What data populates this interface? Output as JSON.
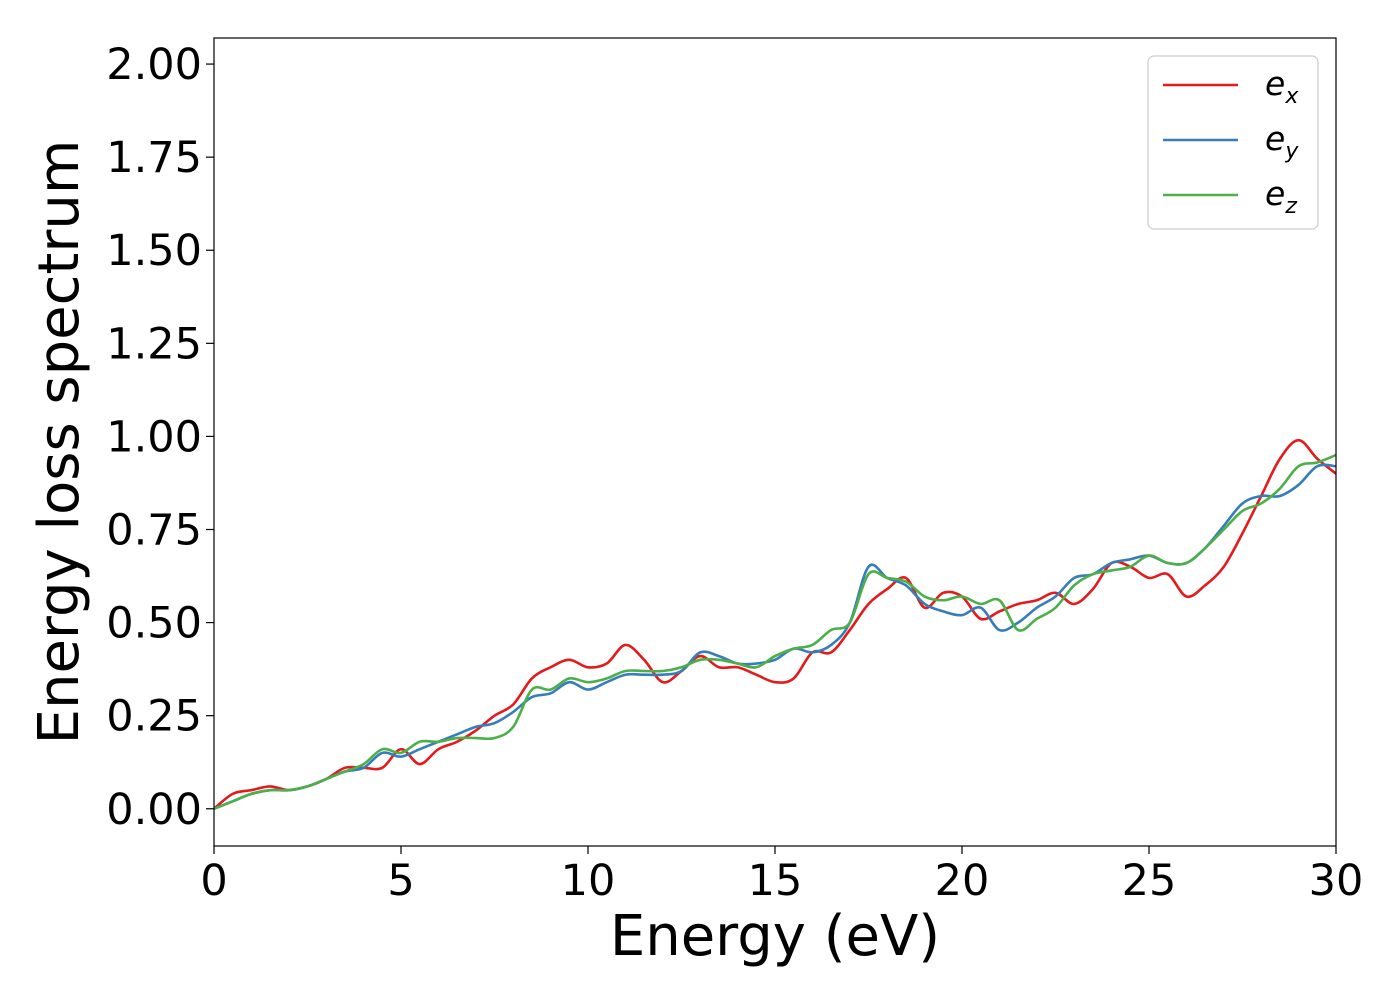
{
  "chart_data": {
    "type": "line",
    "title": "",
    "xlabel": "Energy (eV)",
    "ylabel": "Energy loss spectrum",
    "xlim": [
      0,
      30
    ],
    "ylim": [
      -0.1,
      2.07
    ],
    "xticks": [
      0,
      5,
      10,
      15,
      20,
      25,
      30
    ],
    "xtick_labels": [
      "0",
      "5",
      "10",
      "15",
      "20",
      "25",
      "30"
    ],
    "yticks": [
      0,
      0.25,
      0.5,
      0.75,
      1.0,
      1.25,
      1.5,
      1.75,
      2.0
    ],
    "ytick_labels": [
      "0.00",
      "0.25",
      "0.50",
      "0.75",
      "1.00",
      "1.25",
      "1.50",
      "1.75",
      "2.00"
    ],
    "grid": false,
    "legend_position": "top-right",
    "series": [
      {
        "name": "e",
        "subscript": "x",
        "color": "#e41a1c",
        "x": [
          0,
          0.5,
          1,
          1.5,
          2,
          2.5,
          3,
          3.5,
          4,
          4.5,
          5,
          5.5,
          6,
          6.5,
          7,
          7.5,
          8,
          8.5,
          9,
          9.5,
          10,
          10.5,
          11,
          11.5,
          12,
          12.5,
          13,
          13.5,
          14,
          14.5,
          15,
          15.5,
          16,
          16.5,
          17,
          17.5,
          18,
          18.5,
          19,
          19.5,
          20,
          20.5,
          21,
          21.5,
          22,
          22.5,
          23,
          23.5,
          24,
          24.5,
          25,
          25.5,
          26,
          26.5,
          27,
          27.5,
          28,
          28.5,
          29,
          29.5,
          30
        ],
        "y": [
          0,
          0.04,
          0.05,
          0.06,
          0.05,
          0.06,
          0.08,
          0.11,
          0.11,
          0.11,
          0.16,
          0.12,
          0.16,
          0.18,
          0.21,
          0.25,
          0.28,
          0.35,
          0.38,
          0.4,
          0.38,
          0.39,
          0.44,
          0.4,
          0.34,
          0.37,
          0.41,
          0.38,
          0.38,
          0.36,
          0.34,
          0.35,
          0.42,
          0.42,
          0.48,
          0.55,
          0.59,
          0.62,
          0.54,
          0.58,
          0.57,
          0.51,
          0.53,
          0.55,
          0.56,
          0.58,
          0.55,
          0.59,
          0.66,
          0.65,
          0.62,
          0.63,
          0.57,
          0.6,
          0.65,
          0.74,
          0.84,
          0.94,
          0.99,
          0.94,
          0.9
        ]
      },
      {
        "name": "e",
        "subscript": "y",
        "color": "#377eb8",
        "x": [
          0,
          0.5,
          1,
          1.5,
          2,
          2.5,
          3,
          3.5,
          4,
          4.5,
          5,
          5.5,
          6,
          6.5,
          7,
          7.5,
          8,
          8.5,
          9,
          9.5,
          10,
          10.5,
          11,
          11.5,
          12,
          12.5,
          13,
          13.5,
          14,
          14.5,
          15,
          15.5,
          16,
          16.5,
          17,
          17.5,
          18,
          18.5,
          19,
          19.5,
          20,
          20.5,
          21,
          21.5,
          22,
          22.5,
          23,
          23.5,
          24,
          24.5,
          25,
          25.5,
          26,
          26.5,
          27,
          27.5,
          28,
          28.5,
          29,
          29.5,
          30
        ],
        "y": [
          0,
          0.02,
          0.04,
          0.05,
          0.05,
          0.06,
          0.08,
          0.1,
          0.11,
          0.15,
          0.14,
          0.16,
          0.18,
          0.2,
          0.22,
          0.23,
          0.26,
          0.3,
          0.31,
          0.34,
          0.32,
          0.34,
          0.36,
          0.36,
          0.36,
          0.37,
          0.42,
          0.41,
          0.39,
          0.39,
          0.4,
          0.43,
          0.42,
          0.44,
          0.5,
          0.65,
          0.62,
          0.6,
          0.55,
          0.53,
          0.52,
          0.54,
          0.48,
          0.5,
          0.54,
          0.57,
          0.62,
          0.63,
          0.66,
          0.67,
          0.68,
          0.66,
          0.66,
          0.7,
          0.76,
          0.82,
          0.84,
          0.84,
          0.87,
          0.92,
          0.92
        ]
      },
      {
        "name": "e",
        "subscript": "z",
        "color": "#4daf4a",
        "x": [
          0,
          0.5,
          1,
          1.5,
          2,
          2.5,
          3,
          3.5,
          4,
          4.5,
          5,
          5.5,
          6,
          6.5,
          7,
          7.5,
          8,
          8.5,
          9,
          9.5,
          10,
          10.5,
          11,
          11.5,
          12,
          12.5,
          13,
          13.5,
          14,
          14.5,
          15,
          15.5,
          16,
          16.5,
          17,
          17.5,
          18,
          18.5,
          19,
          19.5,
          20,
          20.5,
          21,
          21.5,
          22,
          22.5,
          23,
          23.5,
          24,
          24.5,
          25,
          25.5,
          26,
          26.5,
          27,
          27.5,
          28,
          28.5,
          29,
          29.5,
          30
        ],
        "y": [
          0,
          0.02,
          0.04,
          0.05,
          0.05,
          0.06,
          0.08,
          0.1,
          0.12,
          0.16,
          0.15,
          0.18,
          0.18,
          0.19,
          0.19,
          0.19,
          0.22,
          0.32,
          0.32,
          0.35,
          0.34,
          0.35,
          0.37,
          0.37,
          0.37,
          0.38,
          0.4,
          0.4,
          0.39,
          0.38,
          0.41,
          0.43,
          0.44,
          0.48,
          0.5,
          0.63,
          0.62,
          0.61,
          0.57,
          0.56,
          0.57,
          0.55,
          0.56,
          0.48,
          0.51,
          0.54,
          0.6,
          0.63,
          0.64,
          0.65,
          0.68,
          0.66,
          0.66,
          0.7,
          0.75,
          0.8,
          0.82,
          0.86,
          0.92,
          0.93,
          0.95
        ]
      }
    ]
  }
}
